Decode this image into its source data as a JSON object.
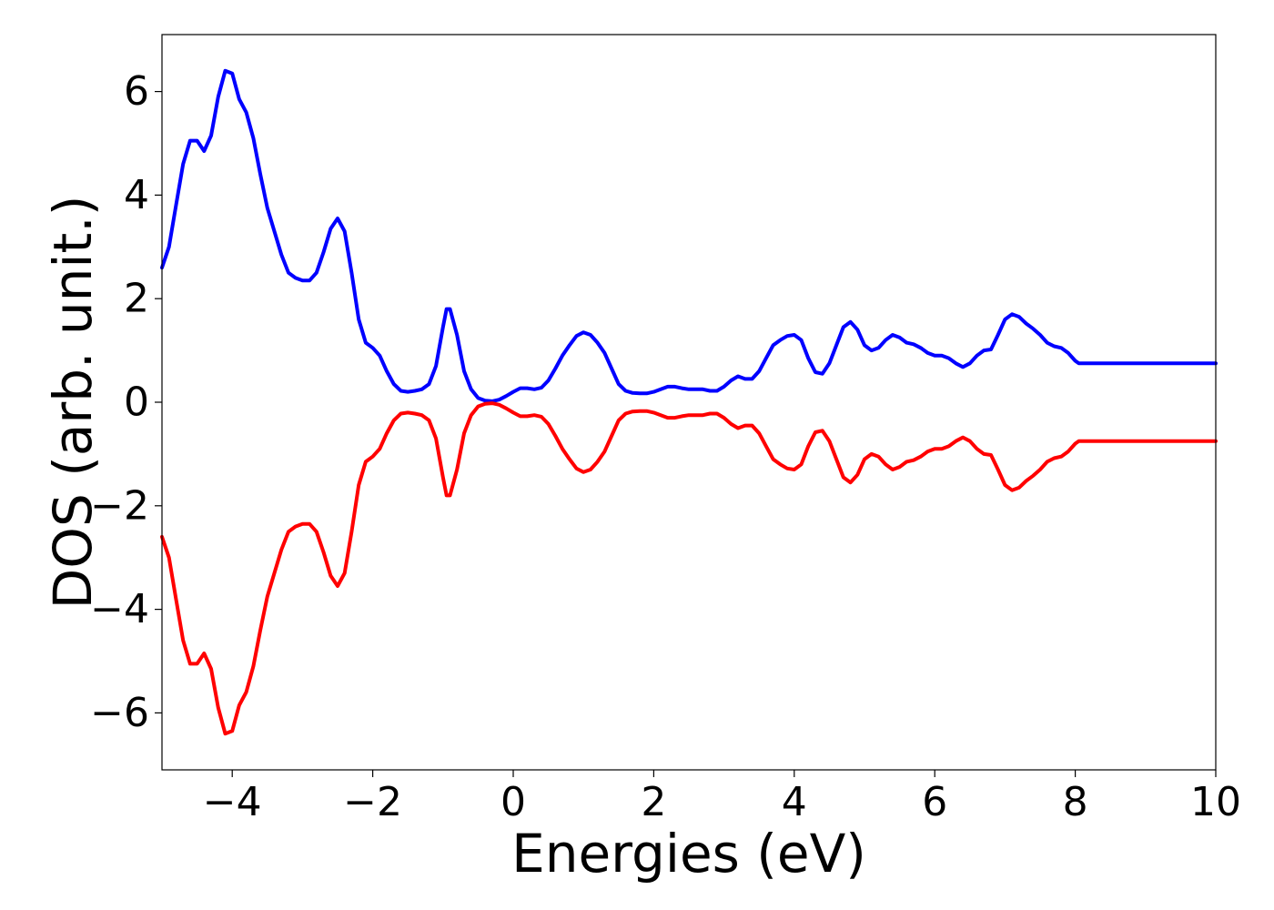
{
  "chart_data": {
    "type": "line",
    "title": "",
    "xlabel": "Energies (eV)",
    "ylabel": "DOS (arb. unit.)",
    "xlim": [
      -5,
      10
    ],
    "ylim": [
      -7.1,
      7.1
    ],
    "xticks": [
      -4,
      -2,
      0,
      2,
      4,
      6,
      8,
      10
    ],
    "xtick_labels": [
      "−4",
      "−2",
      "0",
      "2",
      "4",
      "6",
      "8",
      "10"
    ],
    "yticks": [
      -6,
      -4,
      -2,
      0,
      2,
      4,
      6
    ],
    "ytick_labels": [
      "−6",
      "−4",
      "−2",
      "0",
      "2",
      "4",
      "6"
    ],
    "grid": false,
    "legend": "none",
    "series": [
      {
        "color": "#0000ff",
        "points": [
          [
            -5.0,
            2.6
          ],
          [
            -4.9,
            3.0
          ],
          [
            -4.8,
            3.8
          ],
          [
            -4.7,
            4.6
          ],
          [
            -4.6,
            5.05
          ],
          [
            -4.5,
            5.05
          ],
          [
            -4.4,
            4.85
          ],
          [
            -4.3,
            5.15
          ],
          [
            -4.2,
            5.9
          ],
          [
            -4.1,
            6.4
          ],
          [
            -4.0,
            6.35
          ],
          [
            -3.9,
            5.85
          ],
          [
            -3.8,
            5.6
          ],
          [
            -3.7,
            5.1
          ],
          [
            -3.6,
            4.4
          ],
          [
            -3.5,
            3.75
          ],
          [
            -3.4,
            3.3
          ],
          [
            -3.3,
            2.85
          ],
          [
            -3.2,
            2.5
          ],
          [
            -3.1,
            2.4
          ],
          [
            -3.0,
            2.35
          ],
          [
            -2.9,
            2.35
          ],
          [
            -2.8,
            2.5
          ],
          [
            -2.7,
            2.9
          ],
          [
            -2.6,
            3.35
          ],
          [
            -2.5,
            3.55
          ],
          [
            -2.4,
            3.3
          ],
          [
            -2.3,
            2.5
          ],
          [
            -2.2,
            1.6
          ],
          [
            -2.1,
            1.15
          ],
          [
            -2.0,
            1.05
          ],
          [
            -1.9,
            0.9
          ],
          [
            -1.8,
            0.6
          ],
          [
            -1.7,
            0.35
          ],
          [
            -1.6,
            0.22
          ],
          [
            -1.5,
            0.2
          ],
          [
            -1.4,
            0.22
          ],
          [
            -1.3,
            0.25
          ],
          [
            -1.2,
            0.35
          ],
          [
            -1.1,
            0.7
          ],
          [
            -1.0,
            1.45
          ],
          [
            -0.95,
            1.8
          ],
          [
            -0.9,
            1.8
          ],
          [
            -0.8,
            1.3
          ],
          [
            -0.7,
            0.6
          ],
          [
            -0.6,
            0.25
          ],
          [
            -0.5,
            0.08
          ],
          [
            -0.4,
            0.03
          ],
          [
            -0.3,
            0.02
          ],
          [
            -0.2,
            0.05
          ],
          [
            -0.1,
            0.12
          ],
          [
            0.0,
            0.2
          ],
          [
            0.1,
            0.27
          ],
          [
            0.2,
            0.27
          ],
          [
            0.3,
            0.25
          ],
          [
            0.4,
            0.28
          ],
          [
            0.5,
            0.42
          ],
          [
            0.6,
            0.65
          ],
          [
            0.7,
            0.9
          ],
          [
            0.8,
            1.1
          ],
          [
            0.9,
            1.28
          ],
          [
            1.0,
            1.35
          ],
          [
            1.1,
            1.3
          ],
          [
            1.2,
            1.15
          ],
          [
            1.3,
            0.95
          ],
          [
            1.4,
            0.65
          ],
          [
            1.5,
            0.35
          ],
          [
            1.6,
            0.22
          ],
          [
            1.7,
            0.18
          ],
          [
            1.8,
            0.17
          ],
          [
            1.9,
            0.17
          ],
          [
            2.0,
            0.2
          ],
          [
            2.1,
            0.25
          ],
          [
            2.2,
            0.3
          ],
          [
            2.3,
            0.3
          ],
          [
            2.4,
            0.27
          ],
          [
            2.5,
            0.25
          ],
          [
            2.6,
            0.25
          ],
          [
            2.7,
            0.25
          ],
          [
            2.8,
            0.22
          ],
          [
            2.9,
            0.22
          ],
          [
            3.0,
            0.3
          ],
          [
            3.1,
            0.42
          ],
          [
            3.2,
            0.5
          ],
          [
            3.3,
            0.45
          ],
          [
            3.4,
            0.45
          ],
          [
            3.5,
            0.6
          ],
          [
            3.6,
            0.85
          ],
          [
            3.7,
            1.1
          ],
          [
            3.8,
            1.2
          ],
          [
            3.9,
            1.28
          ],
          [
            4.0,
            1.3
          ],
          [
            4.1,
            1.2
          ],
          [
            4.2,
            0.85
          ],
          [
            4.3,
            0.58
          ],
          [
            4.4,
            0.55
          ],
          [
            4.5,
            0.75
          ],
          [
            4.6,
            1.1
          ],
          [
            4.7,
            1.45
          ],
          [
            4.8,
            1.55
          ],
          [
            4.9,
            1.4
          ],
          [
            5.0,
            1.1
          ],
          [
            5.1,
            1.0
          ],
          [
            5.2,
            1.05
          ],
          [
            5.3,
            1.2
          ],
          [
            5.4,
            1.3
          ],
          [
            5.5,
            1.25
          ],
          [
            5.6,
            1.15
          ],
          [
            5.7,
            1.12
          ],
          [
            5.8,
            1.05
          ],
          [
            5.9,
            0.95
          ],
          [
            6.0,
            0.9
          ],
          [
            6.1,
            0.9
          ],
          [
            6.2,
            0.85
          ],
          [
            6.3,
            0.75
          ],
          [
            6.4,
            0.68
          ],
          [
            6.5,
            0.75
          ],
          [
            6.6,
            0.9
          ],
          [
            6.7,
            1.0
          ],
          [
            6.8,
            1.02
          ],
          [
            6.9,
            1.3
          ],
          [
            7.0,
            1.6
          ],
          [
            7.1,
            1.7
          ],
          [
            7.2,
            1.65
          ],
          [
            7.3,
            1.52
          ],
          [
            7.4,
            1.42
          ],
          [
            7.5,
            1.3
          ],
          [
            7.6,
            1.15
          ],
          [
            7.7,
            1.08
          ],
          [
            7.8,
            1.05
          ],
          [
            7.9,
            0.95
          ],
          [
            8.0,
            0.8
          ],
          [
            8.05,
            0.75
          ],
          [
            10.0,
            0.75
          ]
        ]
      },
      {
        "color": "#ff0000",
        "points": [
          [
            -5.0,
            -2.6
          ],
          [
            -4.9,
            -3.0
          ],
          [
            -4.8,
            -3.8
          ],
          [
            -4.7,
            -4.6
          ],
          [
            -4.6,
            -5.05
          ],
          [
            -4.5,
            -5.05
          ],
          [
            -4.4,
            -4.85
          ],
          [
            -4.3,
            -5.15
          ],
          [
            -4.2,
            -5.9
          ],
          [
            -4.1,
            -6.4
          ],
          [
            -4.0,
            -6.35
          ],
          [
            -3.9,
            -5.85
          ],
          [
            -3.8,
            -5.6
          ],
          [
            -3.7,
            -5.1
          ],
          [
            -3.6,
            -4.4
          ],
          [
            -3.5,
            -3.75
          ],
          [
            -3.4,
            -3.3
          ],
          [
            -3.3,
            -2.85
          ],
          [
            -3.2,
            -2.5
          ],
          [
            -3.1,
            -2.4
          ],
          [
            -3.0,
            -2.35
          ],
          [
            -2.9,
            -2.35
          ],
          [
            -2.8,
            -2.5
          ],
          [
            -2.7,
            -2.9
          ],
          [
            -2.6,
            -3.35
          ],
          [
            -2.5,
            -3.55
          ],
          [
            -2.4,
            -3.3
          ],
          [
            -2.3,
            -2.5
          ],
          [
            -2.2,
            -1.6
          ],
          [
            -2.1,
            -1.15
          ],
          [
            -2.0,
            -1.05
          ],
          [
            -1.9,
            -0.9
          ],
          [
            -1.8,
            -0.6
          ],
          [
            -1.7,
            -0.35
          ],
          [
            -1.6,
            -0.22
          ],
          [
            -1.5,
            -0.2
          ],
          [
            -1.4,
            -0.22
          ],
          [
            -1.3,
            -0.25
          ],
          [
            -1.2,
            -0.35
          ],
          [
            -1.1,
            -0.7
          ],
          [
            -1.0,
            -1.45
          ],
          [
            -0.95,
            -1.8
          ],
          [
            -0.9,
            -1.8
          ],
          [
            -0.8,
            -1.3
          ],
          [
            -0.7,
            -0.6
          ],
          [
            -0.6,
            -0.25
          ],
          [
            -0.5,
            -0.08
          ],
          [
            -0.4,
            -0.03
          ],
          [
            -0.3,
            -0.02
          ],
          [
            -0.2,
            -0.05
          ],
          [
            -0.1,
            -0.12
          ],
          [
            0.0,
            -0.2
          ],
          [
            0.1,
            -0.27
          ],
          [
            0.2,
            -0.27
          ],
          [
            0.3,
            -0.25
          ],
          [
            0.4,
            -0.28
          ],
          [
            0.5,
            -0.42
          ],
          [
            0.6,
            -0.65
          ],
          [
            0.7,
            -0.9
          ],
          [
            0.8,
            -1.1
          ],
          [
            0.9,
            -1.28
          ],
          [
            1.0,
            -1.35
          ],
          [
            1.1,
            -1.3
          ],
          [
            1.2,
            -1.15
          ],
          [
            1.3,
            -0.95
          ],
          [
            1.4,
            -0.65
          ],
          [
            1.5,
            -0.35
          ],
          [
            1.6,
            -0.22
          ],
          [
            1.7,
            -0.18
          ],
          [
            1.8,
            -0.17
          ],
          [
            1.9,
            -0.17
          ],
          [
            2.0,
            -0.2
          ],
          [
            2.1,
            -0.25
          ],
          [
            2.2,
            -0.3
          ],
          [
            2.3,
            -0.3
          ],
          [
            2.4,
            -0.27
          ],
          [
            2.5,
            -0.25
          ],
          [
            2.6,
            -0.25
          ],
          [
            2.7,
            -0.25
          ],
          [
            2.8,
            -0.22
          ],
          [
            2.9,
            -0.22
          ],
          [
            3.0,
            -0.3
          ],
          [
            3.1,
            -0.42
          ],
          [
            3.2,
            -0.5
          ],
          [
            3.3,
            -0.45
          ],
          [
            3.4,
            -0.45
          ],
          [
            3.5,
            -0.6
          ],
          [
            3.6,
            -0.85
          ],
          [
            3.7,
            -1.1
          ],
          [
            3.8,
            -1.2
          ],
          [
            3.9,
            -1.28
          ],
          [
            4.0,
            -1.3
          ],
          [
            4.1,
            -1.2
          ],
          [
            4.2,
            -0.85
          ],
          [
            4.3,
            -0.58
          ],
          [
            4.4,
            -0.55
          ],
          [
            4.5,
            -0.75
          ],
          [
            4.6,
            -1.1
          ],
          [
            4.7,
            -1.45
          ],
          [
            4.8,
            -1.55
          ],
          [
            4.9,
            -1.4
          ],
          [
            5.0,
            -1.1
          ],
          [
            5.1,
            -1.0
          ],
          [
            5.2,
            -1.05
          ],
          [
            5.3,
            -1.2
          ],
          [
            5.4,
            -1.3
          ],
          [
            5.5,
            -1.25
          ],
          [
            5.6,
            -1.15
          ],
          [
            5.7,
            -1.12
          ],
          [
            5.8,
            -1.05
          ],
          [
            5.9,
            -0.95
          ],
          [
            6.0,
            -0.9
          ],
          [
            6.1,
            -0.9
          ],
          [
            6.2,
            -0.85
          ],
          [
            6.3,
            -0.75
          ],
          [
            6.4,
            -0.68
          ],
          [
            6.5,
            -0.75
          ],
          [
            6.6,
            -0.9
          ],
          [
            6.7,
            -1.0
          ],
          [
            6.8,
            -1.02
          ],
          [
            6.9,
            -1.3
          ],
          [
            7.0,
            -1.6
          ],
          [
            7.1,
            -1.7
          ],
          [
            7.2,
            -1.65
          ],
          [
            7.3,
            -1.52
          ],
          [
            7.4,
            -1.42
          ],
          [
            7.5,
            -1.3
          ],
          [
            7.6,
            -1.15
          ],
          [
            7.7,
            -1.08
          ],
          [
            7.8,
            -1.05
          ],
          [
            7.9,
            -0.95
          ],
          [
            8.0,
            -0.8
          ],
          [
            8.05,
            -0.75
          ],
          [
            10.0,
            -0.75
          ]
        ]
      }
    ]
  }
}
